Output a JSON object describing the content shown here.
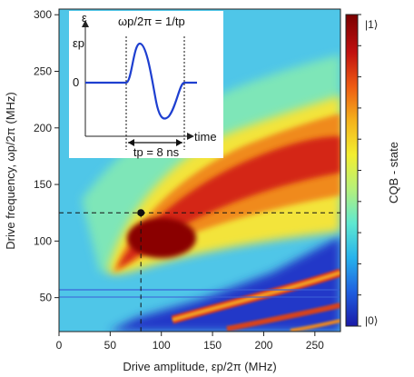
{
  "chart_data": {
    "type": "heatmap",
    "x_axis": {
      "label": "Drive amplitude, εp/2π (MHz)",
      "range": [
        0,
        275
      ],
      "ticks": [
        0,
        50,
        100,
        150,
        200,
        250
      ]
    },
    "y_axis": {
      "label": "Drive frequency, ωp/2π (MHz)",
      "range": [
        20,
        305
      ],
      "ticks": [
        50,
        100,
        150,
        200,
        250,
        300
      ]
    },
    "colorbar": {
      "label": "CQB - state",
      "top_label": "|1⟩",
      "bottom_label": "|0⟩",
      "colors": [
        "#1a1aa8",
        "#1f5fe0",
        "#27b3ec",
        "#5fe8d0",
        "#b6f07a",
        "#f3ee2f",
        "#f4b21c",
        "#ee5a12",
        "#c01010",
        "#7a0000"
      ]
    },
    "features": [
      {
        "name": "main-resonance",
        "points": [
          [
            60,
            60
          ],
          [
            80,
            85
          ],
          [
            110,
            115
          ],
          [
            160,
            150
          ],
          [
            220,
            185
          ],
          [
            275,
            210
          ]
        ]
      },
      {
        "name": "secondary-resonance",
        "points": [
          [
            130,
            40
          ],
          [
            200,
            52
          ],
          [
            275,
            68
          ]
        ]
      },
      {
        "name": "tertiary-resonance",
        "points": [
          [
            180,
            28
          ],
          [
            275,
            40
          ]
        ]
      }
    ],
    "marker": {
      "x": 80,
      "y": 125
    },
    "inset": {
      "title": "ωp/2π = 1/tp",
      "y_symbol": "ε",
      "y_label": "εp",
      "zero_label": "0",
      "x_label": "time",
      "duration_label": "tp = 8 ns"
    }
  }
}
